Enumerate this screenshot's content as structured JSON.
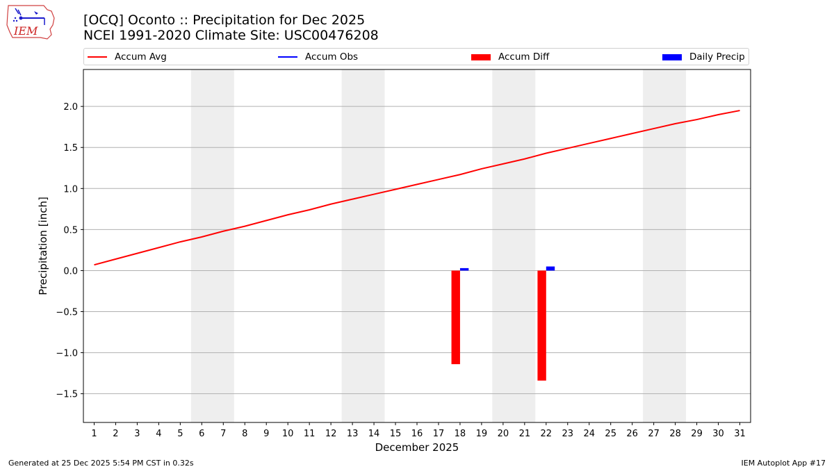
{
  "header": {
    "logo_text": "IEM",
    "title_line1": "[OCQ] Oconto :: Precipitation for Dec 2025",
    "title_line2": "NCEI 1991-2020 Climate Site: USC00476208"
  },
  "legend": [
    {
      "label": "Accum Avg",
      "kind": "line",
      "color": "#ff0000"
    },
    {
      "label": "Accum Obs",
      "kind": "line",
      "color": "#0000ff"
    },
    {
      "label": "Accum Diff",
      "kind": "bar",
      "color": "#ff0000"
    },
    {
      "label": "Daily Precip",
      "kind": "bar",
      "color": "#0000ff"
    }
  ],
  "chart_data": {
    "type": "bar",
    "xlabel": "December 2025",
    "ylabel": "Precipitation [inch]",
    "xlim": [
      0.5,
      31.5
    ],
    "ylim": [
      -1.85,
      2.45
    ],
    "x_ticks": [
      1,
      2,
      3,
      4,
      5,
      6,
      7,
      8,
      9,
      10,
      11,
      12,
      13,
      14,
      15,
      16,
      17,
      18,
      19,
      20,
      21,
      22,
      23,
      24,
      25,
      26,
      27,
      28,
      29,
      30,
      31
    ],
    "y_ticks": [
      -1.5,
      -1.0,
      -0.5,
      0.0,
      0.5,
      1.0,
      1.5,
      2.0
    ],
    "y_tick_labels": [
      "−1.5",
      "−1.0",
      "−0.5",
      "0.0",
      "0.5",
      "1.0",
      "1.5",
      "2.0"
    ],
    "grid": "horizontal",
    "weekend_shading": [
      [
        5.5,
        7.5
      ],
      [
        12.5,
        14.5
      ],
      [
        19.5,
        21.5
      ],
      [
        26.5,
        28.5
      ]
    ],
    "series": [
      {
        "name": "Accum Avg",
        "type": "line",
        "color": "#ff0000",
        "x": [
          1,
          2,
          3,
          4,
          5,
          6,
          7,
          8,
          9,
          10,
          11,
          12,
          13,
          14,
          15,
          16,
          17,
          18,
          19,
          20,
          21,
          22,
          23,
          24,
          25,
          26,
          27,
          28,
          29,
          30,
          31
        ],
        "values": [
          0.07,
          0.14,
          0.21,
          0.28,
          0.35,
          0.41,
          0.48,
          0.54,
          0.61,
          0.68,
          0.74,
          0.81,
          0.87,
          0.93,
          0.99,
          1.05,
          1.11,
          1.17,
          1.24,
          1.3,
          1.36,
          1.43,
          1.49,
          1.55,
          1.61,
          1.67,
          1.73,
          1.79,
          1.84,
          1.9,
          1.95
        ]
      },
      {
        "name": "Accum Obs",
        "type": "line",
        "color": "#0000ff",
        "x": [],
        "values": []
      },
      {
        "name": "Accum Diff",
        "type": "bar",
        "color": "#ff0000",
        "x": [
          18,
          22
        ],
        "values": [
          -1.14,
          -1.34
        ]
      },
      {
        "name": "Daily Precip",
        "type": "bar",
        "color": "#0000ff",
        "x": [
          18,
          22
        ],
        "values": [
          0.03,
          0.05
        ]
      }
    ]
  },
  "footer": {
    "left": "Generated at 25 Dec 2025 5:54 PM CST in 0.32s",
    "right": "IEM Autoplot App #17"
  }
}
